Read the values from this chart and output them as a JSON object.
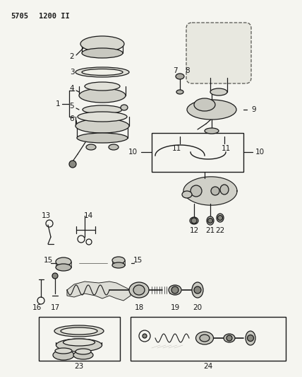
{
  "title": "5705  1200 II",
  "bg_color": "#f5f5f0",
  "line_color": "#000000",
  "fig_width": 4.28,
  "fig_height": 5.33,
  "dpi": 100
}
